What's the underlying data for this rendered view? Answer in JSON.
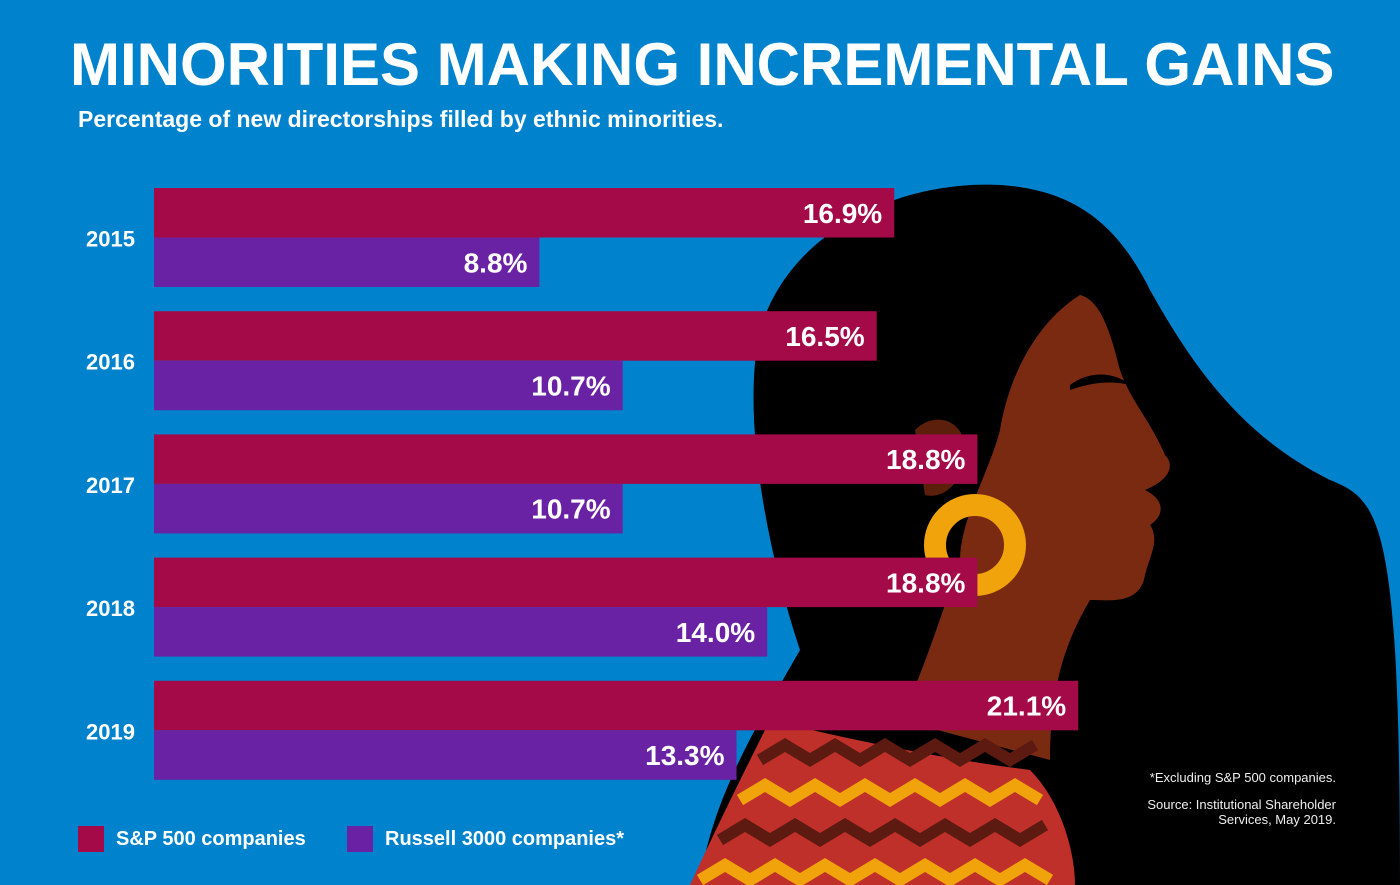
{
  "chart_data": {
    "type": "bar",
    "orientation": "horizontal",
    "title": "MINORITIES MAKING INCREMENTAL GAINS",
    "subtitle": "Percentage of new directorships filled by ethnic minorities.",
    "categories": [
      "2015",
      "2016",
      "2017",
      "2018",
      "2019"
    ],
    "series": [
      {
        "name": "S&P 500 companies",
        "color": "#a40a48",
        "values": [
          16.9,
          16.5,
          18.8,
          18.8,
          21.1
        ],
        "labels": [
          "16.9%",
          "16.5%",
          "18.8%",
          "18.8%",
          "21.1%"
        ]
      },
      {
        "name": "Russell 3000 companies*",
        "color": "#6a22a4",
        "values": [
          8.8,
          10.7,
          10.7,
          14.0,
          13.3
        ],
        "labels": [
          "8.8%",
          "10.7%",
          "10.7%",
          "14.0%",
          "13.3%"
        ]
      }
    ],
    "xlim": [
      0,
      30
    ],
    "grid": false,
    "legend": "bottom-left",
    "footnote": "*Excluding S&P 500 companies.",
    "source": "Source: Institutional Shareholder Services, May 2019."
  },
  "colors": {
    "background": "#0082cc",
    "hair": "#000000",
    "skin": "#7b2a12",
    "earring": "#f0a30a"
  }
}
